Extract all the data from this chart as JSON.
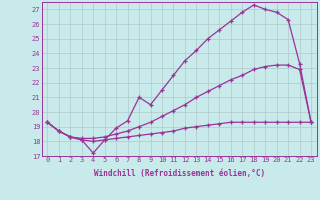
{
  "xlabel": "Windchill (Refroidissement éolien,°C)",
  "bg_color": "#c8eaea",
  "line_color": "#993399",
  "grid_color": "#b0c8c8",
  "xlim": [
    -0.5,
    23.5
  ],
  "ylim": [
    17,
    27.5
  ],
  "xticks": [
    0,
    1,
    2,
    3,
    4,
    5,
    6,
    7,
    8,
    9,
    10,
    11,
    12,
    13,
    14,
    15,
    16,
    17,
    18,
    19,
    20,
    21,
    22,
    23
  ],
  "yticks": [
    17,
    18,
    19,
    20,
    21,
    22,
    23,
    24,
    25,
    26,
    27
  ],
  "series": [
    {
      "x": [
        0,
        1,
        2,
        3,
        4,
        5,
        6,
        7,
        8,
        9,
        10,
        11,
        12,
        13,
        14,
        15,
        16,
        17,
        18,
        19,
        20,
        21,
        22,
        23
      ],
      "y": [
        19.3,
        18.7,
        18.3,
        18.1,
        17.2,
        18.1,
        18.9,
        19.4,
        21.0,
        20.5,
        21.5,
        22.5,
        23.5,
        24.2,
        25.0,
        25.6,
        26.2,
        26.8,
        27.3,
        27.0,
        26.8,
        26.3,
        23.3,
        19.3
      ]
    },
    {
      "x": [
        0,
        1,
        2,
        3,
        4,
        5,
        6,
        7,
        8,
        9,
        10,
        11,
        12,
        13,
        14,
        15,
        16,
        17,
        18,
        19,
        20,
        21,
        22,
        23
      ],
      "y": [
        19.3,
        18.7,
        18.3,
        18.2,
        18.2,
        18.3,
        18.5,
        18.7,
        19.0,
        19.3,
        19.7,
        20.1,
        20.5,
        21.0,
        21.4,
        21.8,
        22.2,
        22.5,
        22.9,
        23.1,
        23.2,
        23.2,
        22.9,
        19.3
      ]
    },
    {
      "x": [
        0,
        1,
        2,
        3,
        4,
        5,
        6,
        7,
        8,
        9,
        10,
        11,
        12,
        13,
        14,
        15,
        16,
        17,
        18,
        19,
        20,
        21,
        22,
        23
      ],
      "y": [
        19.3,
        18.7,
        18.3,
        18.1,
        18.0,
        18.1,
        18.2,
        18.3,
        18.4,
        18.5,
        18.6,
        18.7,
        18.9,
        19.0,
        19.1,
        19.2,
        19.3,
        19.3,
        19.3,
        19.3,
        19.3,
        19.3,
        19.3,
        19.3
      ]
    }
  ]
}
